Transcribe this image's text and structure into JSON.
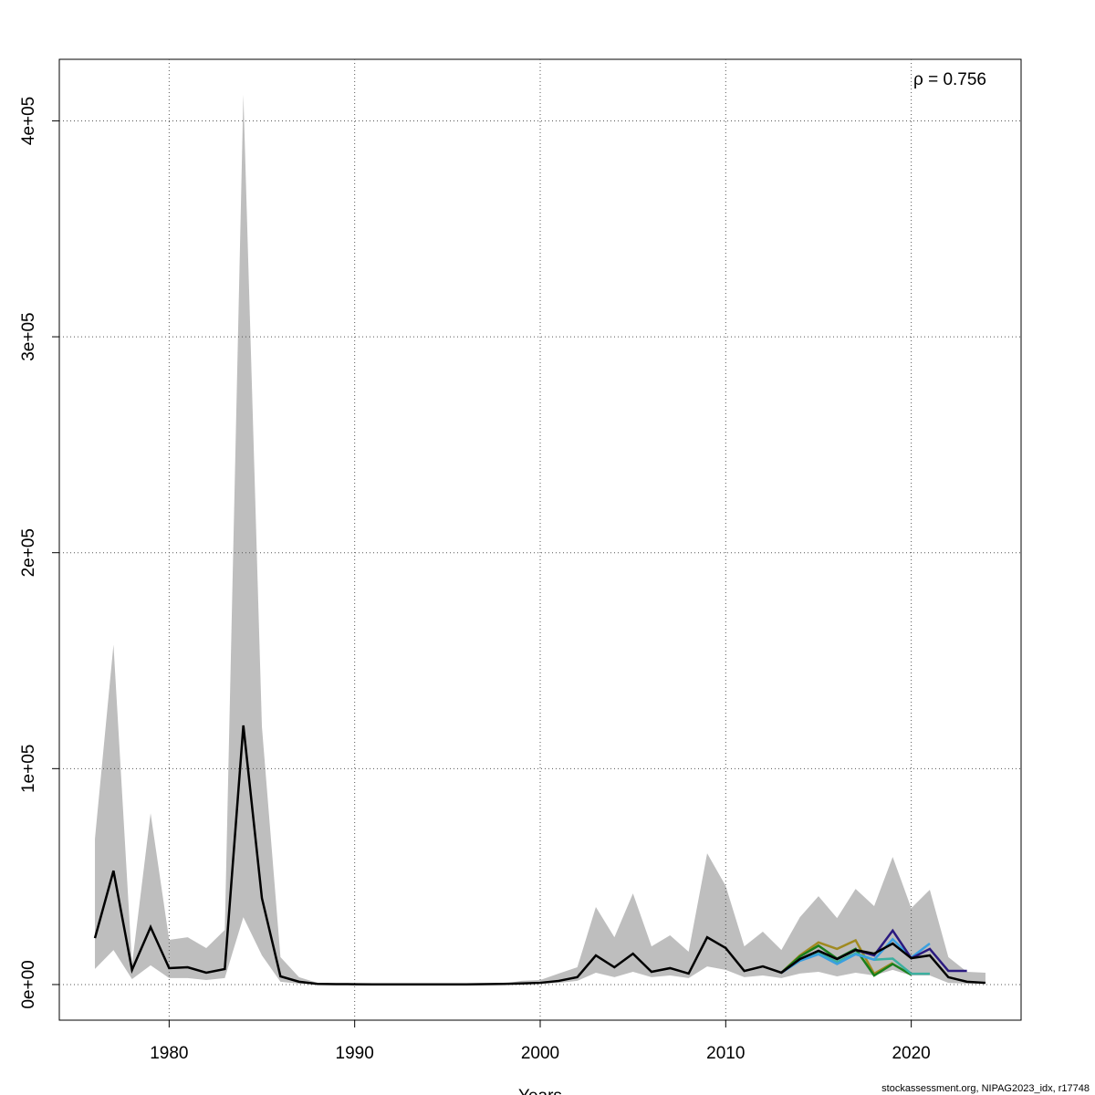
{
  "chart_data": {
    "type": "line",
    "x_label": "Years",
    "annotation": "ρ = 0.756",
    "footer": "stockassessment.org, NIPAG2023_idx, r17748",
    "xlim": [
      1974.08,
      2025.92
    ],
    "xticks": [
      1980,
      1990,
      2000,
      2010,
      2020
    ],
    "ylim": [
      -16500,
      428500
    ],
    "yticks": [
      {
        "value": 0,
        "label": "0e+00"
      },
      {
        "value": 100000,
        "label": "1e+05"
      },
      {
        "value": 200000,
        "label": "2e+05"
      },
      {
        "value": 300000,
        "label": "3e+05"
      },
      {
        "value": 400000,
        "label": "4e+05"
      }
    ],
    "grid": true,
    "x": [
      1976,
      1977,
      1978,
      1979,
      1980,
      1981,
      1982,
      1983,
      1984,
      1985,
      1986,
      1987,
      1988,
      1989,
      1990,
      1991,
      1992,
      1993,
      1994,
      1995,
      1996,
      1997,
      1998,
      1999,
      2000,
      2001,
      2002,
      2003,
      2004,
      2005,
      2006,
      2007,
      2008,
      2009,
      2010,
      2011,
      2012,
      2013,
      2014,
      2015,
      2016,
      2017,
      2018,
      2019,
      2020,
      2021,
      2022,
      2023,
      2024
    ],
    "band": {
      "color": "#bebebe",
      "upper": [
        67500,
        157400,
        9300,
        79300,
        20700,
        21900,
        16900,
        25300,
        412200,
        119400,
        12700,
        3400,
        800,
        400,
        400,
        400,
        400,
        400,
        400,
        400,
        400,
        400,
        400,
        1700,
        2100,
        5100,
        8000,
        35900,
        21900,
        42200,
        17700,
        22800,
        15200,
        60800,
        45600,
        17700,
        24500,
        16000,
        31200,
        40900,
        30800,
        44300,
        36300,
        59100,
        35400,
        43900,
        12700,
        5900,
        5500
      ],
      "lower": [
        7200,
        16000,
        2500,
        8900,
        3000,
        3000,
        2100,
        3000,
        31200,
        13500,
        1300,
        400,
        100,
        50,
        50,
        50,
        50,
        50,
        50,
        50,
        50,
        50,
        100,
        200,
        300,
        800,
        1700,
        5500,
        3400,
        5900,
        3400,
        4200,
        3000,
        8400,
        6800,
        3400,
        4200,
        3000,
        5100,
        5900,
        3800,
        5500,
        4200,
        6800,
        4200,
        4200,
        800,
        400,
        200
      ]
    },
    "series": [
      {
        "color": "#000000",
        "values": [
          21500,
          52700,
          6800,
          26600,
          7600,
          8000,
          5500,
          7200,
          120000,
          40000,
          3800,
          1300,
          300,
          200,
          150,
          100,
          100,
          100,
          100,
          100,
          100,
          200,
          300,
          500,
          800,
          1700,
          3400,
          13500,
          8000,
          14300,
          5900,
          7600,
          5100,
          21900,
          16900,
          6300,
          8400,
          5500,
          11800,
          15600,
          11800,
          16000,
          14300,
          19000,
          12200,
          13500,
          3400,
          1300,
          800
        ]
      },
      {
        "color": "#2b1a80",
        "x": [
          2013,
          2014,
          2015,
          2016,
          2017,
          2018,
          2019,
          2020,
          2021,
          2022,
          2023
        ],
        "values": [
          5500,
          11800,
          15600,
          11800,
          16000,
          13500,
          25000,
          12200,
          16500,
          6300,
          6300
        ]
      },
      {
        "color": "#3aa0e0",
        "x": [
          2013,
          2014,
          2015,
          2016,
          2017,
          2018,
          2019,
          2020,
          2021
        ],
        "values": [
          5500,
          11000,
          14000,
          9500,
          14000,
          11500,
          21000,
          12500,
          19000
        ]
      },
      {
        "color": "#3cb0a0",
        "x": [
          2013,
          2014,
          2015,
          2016,
          2017,
          2018,
          2019,
          2020,
          2021
        ],
        "values": [
          5500,
          11500,
          14500,
          10500,
          14500,
          11500,
          12000,
          5000,
          5000
        ]
      },
      {
        "color": "#1a7f1a",
        "x": [
          2013,
          2014,
          2015,
          2016,
          2017,
          2018,
          2019,
          2020
        ],
        "values": [
          5500,
          13000,
          18000,
          12000,
          16500,
          4200,
          9500,
          4500
        ]
      },
      {
        "color": "#a08a20",
        "x": [
          2013,
          2014,
          2015,
          2016,
          2017,
          2018,
          2019
        ],
        "values": [
          5500,
          13500,
          19500,
          16500,
          20500,
          5000,
          10000
        ]
      }
    ]
  }
}
